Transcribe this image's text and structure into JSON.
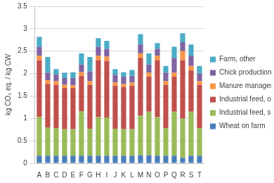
{
  "chart_data": {
    "type": "bar",
    "stacked": true,
    "grid": true,
    "legend": "right",
    "y_label": "kg CO₂ eq. / kg CW",
    "categories": [
      "A",
      "B",
      "C",
      "D",
      "E",
      "F",
      "G",
      "H",
      "I",
      "J",
      "K",
      "L",
      "M",
      "N",
      "O",
      "P",
      "Q",
      "R",
      "S",
      "T"
    ],
    "ylim": [
      0,
      3.5
    ],
    "yticks": [
      0,
      0.5,
      1,
      1.5,
      2,
      2.5,
      3,
      3.5
    ],
    "series": [
      {
        "name": "Wheat on farm",
        "color": "#4a7ebb",
        "values": [
          0.17,
          0.17,
          0.17,
          0.17,
          0.17,
          0.17,
          0.17,
          0.17,
          0.17,
          0.17,
          0.17,
          0.17,
          0.18,
          0.18,
          0.17,
          0.17,
          0.17,
          0.12,
          0.17,
          0.17
        ]
      },
      {
        "name": "Industrial feed, soy",
        "color": "#9bbb59",
        "values": [
          0.86,
          0.63,
          0.61,
          0.59,
          0.59,
          0.99,
          0.6,
          0.86,
          0.85,
          0.6,
          0.59,
          0.59,
          0.88,
          0.97,
          0.86,
          0.61,
          0.98,
          0.88,
          0.98,
          0.61
        ]
      },
      {
        "name": "Industrial feed, other",
        "color": "#c0504d",
        "values": [
          1.27,
          0.97,
          0.97,
          0.92,
          0.92,
          0.79,
          0.98,
          1.27,
          1.26,
          0.96,
          0.94,
          0.97,
          1.29,
          0.78,
          1.27,
          0.97,
          0.78,
          1.3,
          0.92,
          0.97
        ]
      },
      {
        "name": "Manure management",
        "color": "#f79646",
        "values": [
          0.1,
          0.08,
          0.08,
          0.07,
          0.06,
          0.08,
          0.08,
          0.1,
          0.1,
          0.07,
          0.07,
          0.07,
          0.1,
          0.09,
          0.1,
          0.08,
          0.09,
          0.2,
          0.1,
          0.08
        ]
      },
      {
        "name": "Chick production",
        "color": "#8064a2",
        "values": [
          0.2,
          0.17,
          0.15,
          0.15,
          0.16,
          0.17,
          0.22,
          0.2,
          0.17,
          0.17,
          0.16,
          0.15,
          0.2,
          0.18,
          0.15,
          0.19,
          0.33,
          0.2,
          0.23,
          0.17
        ]
      },
      {
        "name": "Farm, other",
        "color": "#4bacc6",
        "values": [
          0.22,
          0.35,
          0.12,
          0.12,
          0.13,
          0.25,
          0.32,
          0.19,
          0.18,
          0.13,
          0.1,
          0.13,
          0.23,
          0.25,
          0.13,
          0.15,
          0.25,
          0.2,
          0.25,
          0.17
        ]
      }
    ]
  }
}
